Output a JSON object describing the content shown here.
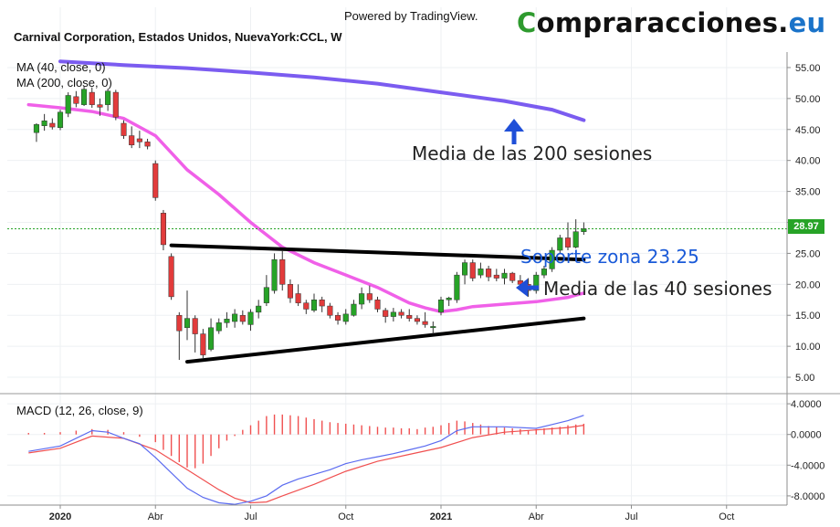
{
  "header": {
    "powered": "Powered by TradingView.",
    "symbol": "Carnival Corporation, Estados Unidos, NuevaYork:CCL, W",
    "brand_part1": "C",
    "brand_part2": "ompraracciones.",
    "brand_part3": "eu"
  },
  "indicators": {
    "ma40": "MA (40, close, 0)",
    "ma200": "MA (200, close, 0)",
    "macd": "MACD (12, 26, close, 9)"
  },
  "annotations": {
    "ma200_label": "Media de las 200 sesiones",
    "support_label": "Soporte zona 23.25",
    "ma40_label": "Media de las 40 sesiones"
  },
  "last_price": "28.97",
  "colors": {
    "up": "#27a327",
    "down": "#e23b3b",
    "ma40": "#f060e8",
    "ma200": "#7b5cf0",
    "macd_line": "#5b6bf0",
    "signal_line": "#f05050",
    "support_text": "#1a5ad8",
    "arrow": "#1f4fd8"
  },
  "chart_data": {
    "type": "candlestick",
    "title": "Carnival Corporation, Estados Unidos, NuevaYork:CCL, W",
    "price_axis": {
      "ylim": [
        2.5,
        57.5
      ],
      "ticks": [
        5,
        10,
        15,
        20,
        25,
        30,
        35,
        40,
        45,
        50,
        55
      ],
      "tick_labels": [
        "5.00",
        "10.00",
        "15.00",
        "20.00",
        "25.00",
        "30.00",
        "35.00",
        "40.00",
        "45.00",
        "50.00",
        "55.00"
      ]
    },
    "time_axis": {
      "start_month_index": -1,
      "month_labels": [
        {
          "label": "2020",
          "month": 0
        },
        {
          "label": "Abr",
          "month": 3
        },
        {
          "label": "Jul",
          "month": 6
        },
        {
          "label": "Oct",
          "month": 9
        },
        {
          "label": "2021",
          "month": 12
        },
        {
          "label": "Abr",
          "month": 15
        },
        {
          "label": "Jul",
          "month": 18
        },
        {
          "label": "Oct",
          "month": 21
        }
      ]
    },
    "candles": [
      {
        "t": -0.75,
        "o": 44.5,
        "h": 46.0,
        "l": 43.0,
        "c": 45.8
      },
      {
        "t": -0.5,
        "o": 45.6,
        "h": 47.5,
        "l": 44.8,
        "c": 46.4
      },
      {
        "t": -0.25,
        "o": 46.0,
        "h": 46.8,
        "l": 45.0,
        "c": 45.4
      },
      {
        "t": 0.0,
        "o": 45.3,
        "h": 48.2,
        "l": 44.9,
        "c": 47.8
      },
      {
        "t": 0.25,
        "o": 47.6,
        "h": 51.0,
        "l": 47.0,
        "c": 50.5
      },
      {
        "t": 0.5,
        "o": 50.3,
        "h": 51.2,
        "l": 48.6,
        "c": 49.2
      },
      {
        "t": 0.75,
        "o": 49.0,
        "h": 52.0,
        "l": 48.8,
        "c": 51.5
      },
      {
        "t": 1.0,
        "o": 51.0,
        "h": 51.8,
        "l": 48.5,
        "c": 49.0
      },
      {
        "t": 1.25,
        "o": 49.0,
        "h": 50.0,
        "l": 47.2,
        "c": 48.6
      },
      {
        "t": 1.5,
        "o": 49.0,
        "h": 51.6,
        "l": 48.0,
        "c": 51.2
      },
      {
        "t": 1.75,
        "o": 51.0,
        "h": 51.4,
        "l": 46.5,
        "c": 47.0
      },
      {
        "t": 2.0,
        "o": 46.0,
        "h": 46.5,
        "l": 43.5,
        "c": 44.0
      },
      {
        "t": 2.25,
        "o": 44.0,
        "h": 45.5,
        "l": 42.0,
        "c": 42.5
      },
      {
        "t": 2.5,
        "o": 43.5,
        "h": 44.8,
        "l": 42.0,
        "c": 43.0
      },
      {
        "t": 2.75,
        "o": 43.0,
        "h": 43.5,
        "l": 41.8,
        "c": 42.3
      },
      {
        "t": 3.0,
        "o": 39.5,
        "h": 40.0,
        "l": 33.5,
        "c": 34.0
      },
      {
        "t": 3.25,
        "o": 31.5,
        "h": 32.0,
        "l": 25.5,
        "c": 26.4
      },
      {
        "t": 3.5,
        "o": 24.5,
        "h": 25.0,
        "l": 17.5,
        "c": 18.0
      },
      {
        "t": 3.75,
        "o": 15.0,
        "h": 15.5,
        "l": 7.8,
        "c": 12.5
      },
      {
        "t": 4.0,
        "o": 13.0,
        "h": 19.0,
        "l": 11.0,
        "c": 14.5
      },
      {
        "t": 4.25,
        "o": 14.5,
        "h": 15.0,
        "l": 9.0,
        "c": 12.0
      },
      {
        "t": 4.5,
        "o": 12.0,
        "h": 12.8,
        "l": 8.0,
        "c": 8.6
      },
      {
        "t": 4.75,
        "o": 9.5,
        "h": 14.5,
        "l": 9.2,
        "c": 13.0
      },
      {
        "t": 5.0,
        "o": 12.5,
        "h": 14.5,
        "l": 12.0,
        "c": 13.8
      },
      {
        "t": 5.25,
        "o": 13.8,
        "h": 15.5,
        "l": 13.0,
        "c": 14.4
      },
      {
        "t": 5.5,
        "o": 14.0,
        "h": 16.0,
        "l": 13.0,
        "c": 15.2
      },
      {
        "t": 5.75,
        "o": 15.0,
        "h": 15.8,
        "l": 13.5,
        "c": 14.0
      },
      {
        "t": 6.0,
        "o": 13.5,
        "h": 16.0,
        "l": 12.5,
        "c": 15.5
      },
      {
        "t": 6.25,
        "o": 15.5,
        "h": 17.5,
        "l": 14.5,
        "c": 16.5
      },
      {
        "t": 6.5,
        "o": 17.0,
        "h": 21.5,
        "l": 16.5,
        "c": 19.5
      },
      {
        "t": 6.75,
        "o": 19.0,
        "h": 25.0,
        "l": 18.5,
        "c": 24.0
      },
      {
        "t": 7.0,
        "o": 24.0,
        "h": 25.5,
        "l": 19.0,
        "c": 20.0
      },
      {
        "t": 7.25,
        "o": 20.0,
        "h": 20.8,
        "l": 17.0,
        "c": 17.8
      },
      {
        "t": 7.5,
        "o": 18.5,
        "h": 20.0,
        "l": 16.5,
        "c": 17.0
      },
      {
        "t": 7.75,
        "o": 17.0,
        "h": 17.5,
        "l": 15.2,
        "c": 16.0
      },
      {
        "t": 8.0,
        "o": 15.8,
        "h": 18.5,
        "l": 15.5,
        "c": 17.5
      },
      {
        "t": 8.25,
        "o": 17.5,
        "h": 18.0,
        "l": 15.5,
        "c": 16.5
      },
      {
        "t": 8.5,
        "o": 16.5,
        "h": 17.0,
        "l": 14.5,
        "c": 15.0
      },
      {
        "t": 8.75,
        "o": 15.0,
        "h": 15.5,
        "l": 13.5,
        "c": 14.2
      },
      {
        "t": 9.0,
        "o": 14.0,
        "h": 16.0,
        "l": 13.5,
        "c": 15.2
      },
      {
        "t": 9.25,
        "o": 15.0,
        "h": 17.5,
        "l": 14.8,
        "c": 16.8
      },
      {
        "t": 9.5,
        "o": 16.8,
        "h": 19.5,
        "l": 16.0,
        "c": 18.5
      },
      {
        "t": 9.75,
        "o": 18.5,
        "h": 19.8,
        "l": 17.0,
        "c": 17.5
      },
      {
        "t": 10.0,
        "o": 17.5,
        "h": 18.0,
        "l": 15.5,
        "c": 16.0
      },
      {
        "t": 10.25,
        "o": 15.8,
        "h": 16.2,
        "l": 13.8,
        "c": 14.8
      },
      {
        "t": 10.5,
        "o": 14.8,
        "h": 16.2,
        "l": 14.0,
        "c": 15.5
      },
      {
        "t": 10.75,
        "o": 15.5,
        "h": 16.0,
        "l": 14.5,
        "c": 15.0
      },
      {
        "t": 11.0,
        "o": 15.0,
        "h": 16.0,
        "l": 14.0,
        "c": 14.5
      },
      {
        "t": 11.25,
        "o": 14.5,
        "h": 15.0,
        "l": 13.5,
        "c": 14.0
      },
      {
        "t": 11.5,
        "o": 14.0,
        "h": 15.5,
        "l": 13.0,
        "c": 13.5
      },
      {
        "t": 11.75,
        "o": 13.0,
        "h": 14.0,
        "l": 12.0,
        "c": 13.2
      },
      {
        "t": 12.0,
        "o": 15.5,
        "h": 18.0,
        "l": 15.0,
        "c": 17.5
      },
      {
        "t": 12.25,
        "o": 17.5,
        "h": 18.0,
        "l": 16.5,
        "c": 17.8
      },
      {
        "t": 12.5,
        "o": 17.5,
        "h": 22.0,
        "l": 17.0,
        "c": 21.5
      },
      {
        "t": 12.75,
        "o": 21.5,
        "h": 24.0,
        "l": 20.0,
        "c": 23.5
      },
      {
        "t": 13.0,
        "o": 23.5,
        "h": 24.0,
        "l": 20.5,
        "c": 21.0
      },
      {
        "t": 13.25,
        "o": 21.5,
        "h": 23.5,
        "l": 21.0,
        "c": 22.5
      },
      {
        "t": 13.5,
        "o": 22.5,
        "h": 23.0,
        "l": 20.5,
        "c": 21.2
      },
      {
        "t": 13.75,
        "o": 21.5,
        "h": 22.5,
        "l": 20.5,
        "c": 21.0
      },
      {
        "t": 14.0,
        "o": 21.0,
        "h": 22.5,
        "l": 20.0,
        "c": 21.8
      },
      {
        "t": 14.25,
        "o": 21.8,
        "h": 22.0,
        "l": 20.2,
        "c": 20.6
      },
      {
        "t": 14.5,
        "o": 20.6,
        "h": 21.5,
        "l": 19.5,
        "c": 20.0
      },
      {
        "t": 14.75,
        "o": 20.0,
        "h": 21.0,
        "l": 18.0,
        "c": 19.0
      },
      {
        "t": 15.0,
        "o": 19.0,
        "h": 22.0,
        "l": 18.5,
        "c": 21.5
      },
      {
        "t": 15.25,
        "o": 21.5,
        "h": 23.0,
        "l": 21.0,
        "c": 22.5
      },
      {
        "t": 15.5,
        "o": 22.5,
        "h": 26.0,
        "l": 22.0,
        "c": 25.5
      },
      {
        "t": 15.75,
        "o": 25.5,
        "h": 28.0,
        "l": 25.0,
        "c": 27.5
      },
      {
        "t": 16.0,
        "o": 27.5,
        "h": 30.0,
        "l": 25.5,
        "c": 26.0
      },
      {
        "t": 16.25,
        "o": 26.0,
        "h": 30.5,
        "l": 25.8,
        "c": 28.5
      },
      {
        "t": 16.5,
        "o": 28.5,
        "h": 30.0,
        "l": 28.0,
        "c": 28.97
      }
    ],
    "ma40": [
      [
        -1.0,
        49.0
      ],
      [
        0.0,
        48.5
      ],
      [
        1.0,
        47.9
      ],
      [
        2.0,
        46.8
      ],
      [
        3.0,
        44.0
      ],
      [
        4.0,
        38.5
      ],
      [
        5.0,
        34.5
      ],
      [
        6.0,
        30.0
      ],
      [
        7.0,
        26.0
      ],
      [
        8.0,
        23.5
      ],
      [
        9.0,
        21.5
      ],
      [
        10.0,
        19.5
      ],
      [
        11.0,
        17.0
      ],
      [
        11.5,
        16.2
      ],
      [
        12.0,
        15.6
      ],
      [
        12.5,
        15.9
      ],
      [
        13.0,
        16.4
      ],
      [
        14.0,
        16.8
      ],
      [
        15.0,
        17.2
      ],
      [
        16.0,
        17.9
      ],
      [
        16.5,
        18.6
      ]
    ],
    "ma200": [
      [
        0.0,
        56.0
      ],
      [
        2.0,
        55.4
      ],
      [
        4.0,
        54.9
      ],
      [
        6.0,
        54.2
      ],
      [
        8.0,
        53.4
      ],
      [
        10.0,
        52.4
      ],
      [
        12.0,
        51.0
      ],
      [
        14.0,
        49.6
      ],
      [
        15.5,
        48.2
      ],
      [
        16.5,
        46.5
      ]
    ],
    "trendlines": [
      {
        "name": "support",
        "from": [
          3.5,
          26.3
        ],
        "to": [
          16.5,
          24.0
        ]
      },
      {
        "name": "rising-base",
        "from": [
          4.0,
          7.5
        ],
        "to": [
          16.5,
          14.5
        ]
      }
    ],
    "last_price_line": 28.97,
    "macd": {
      "ylim": [
        -9.2,
        5.2
      ],
      "ticks": [
        4.0,
        0.0,
        -4.0,
        -8.0
      ],
      "tick_labels": [
        "4.0000",
        "0.0000",
        "-4.0000",
        "-8.0000"
      ],
      "macd_line": [
        [
          -1.0,
          -2.2
        ],
        [
          0.0,
          -1.5
        ],
        [
          1.0,
          0.5
        ],
        [
          1.5,
          0.3
        ],
        [
          2.0,
          -0.5
        ],
        [
          2.5,
          -1.2
        ],
        [
          3.0,
          -3.0
        ],
        [
          3.5,
          -5.0
        ],
        [
          4.0,
          -7.0
        ],
        [
          4.5,
          -8.2
        ],
        [
          5.0,
          -8.9
        ],
        [
          5.5,
          -9.1
        ],
        [
          6.0,
          -8.7
        ],
        [
          6.5,
          -8.0
        ],
        [
          7.0,
          -6.6
        ],
        [
          7.5,
          -5.8
        ],
        [
          8.0,
          -5.2
        ],
        [
          8.5,
          -4.6
        ],
        [
          9.0,
          -3.8
        ],
        [
          9.5,
          -3.3
        ],
        [
          10.0,
          -2.9
        ],
        [
          10.5,
          -2.5
        ],
        [
          11.0,
          -2.0
        ],
        [
          11.5,
          -1.5
        ],
        [
          12.0,
          -0.8
        ],
        [
          12.5,
          0.5
        ],
        [
          13.0,
          1.0
        ],
        [
          14.0,
          1.0
        ],
        [
          15.0,
          0.8
        ],
        [
          15.5,
          1.3
        ],
        [
          16.0,
          1.8
        ],
        [
          16.5,
          2.5
        ]
      ],
      "signal_line": [
        [
          -1.0,
          -2.4
        ],
        [
          0.0,
          -1.8
        ],
        [
          1.0,
          -0.2
        ],
        [
          2.0,
          -0.5
        ],
        [
          3.0,
          -2.0
        ],
        [
          4.0,
          -4.6
        ],
        [
          5.0,
          -7.2
        ],
        [
          5.5,
          -8.3
        ],
        [
          6.0,
          -8.9
        ],
        [
          6.5,
          -8.8
        ],
        [
          7.0,
          -8.0
        ],
        [
          8.0,
          -6.5
        ],
        [
          9.0,
          -4.8
        ],
        [
          10.0,
          -3.5
        ],
        [
          11.0,
          -2.6
        ],
        [
          12.0,
          -1.7
        ],
        [
          13.0,
          -0.4
        ],
        [
          14.0,
          0.3
        ],
        [
          15.0,
          0.6
        ],
        [
          16.0,
          0.9
        ],
        [
          16.5,
          1.2
        ]
      ],
      "histogram": [
        [
          -1.0,
          0.2
        ],
        [
          -0.5,
          0.2
        ],
        [
          0.0,
          0.3
        ],
        [
          0.5,
          0.5
        ],
        [
          1.0,
          0.7
        ],
        [
          1.5,
          0.6
        ],
        [
          2.0,
          0.3
        ],
        [
          2.5,
          -0.3
        ],
        [
          3.0,
          -1.0
        ],
        [
          3.25,
          -2.0
        ],
        [
          3.5,
          -2.8
        ],
        [
          3.75,
          -3.6
        ],
        [
          4.0,
          -4.3
        ],
        [
          4.25,
          -4.4
        ],
        [
          4.5,
          -3.8
        ],
        [
          4.75,
          -2.8
        ],
        [
          5.0,
          -1.8
        ],
        [
          5.25,
          -0.8
        ],
        [
          5.5,
          -0.2
        ],
        [
          5.75,
          0.6
        ],
        [
          6.0,
          1.2
        ],
        [
          6.25,
          1.8
        ],
        [
          6.5,
          2.4
        ],
        [
          6.75,
          2.6
        ],
        [
          7.0,
          2.6
        ],
        [
          7.25,
          2.5
        ],
        [
          7.5,
          2.4
        ],
        [
          7.75,
          2.2
        ],
        [
          8.0,
          2.0
        ],
        [
          8.25,
          1.8
        ],
        [
          8.5,
          1.6
        ],
        [
          8.75,
          1.5
        ],
        [
          9.0,
          1.4
        ],
        [
          9.25,
          1.3
        ],
        [
          9.5,
          1.2
        ],
        [
          9.75,
          1.1
        ],
        [
          10.0,
          1.0
        ],
        [
          10.25,
          0.9
        ],
        [
          10.5,
          0.9
        ],
        [
          10.75,
          0.8
        ],
        [
          11.0,
          0.8
        ],
        [
          11.25,
          0.7
        ],
        [
          11.5,
          0.9
        ],
        [
          11.75,
          1.0
        ],
        [
          12.0,
          1.2
        ],
        [
          12.25,
          1.5
        ],
        [
          12.5,
          1.8
        ],
        [
          12.75,
          1.7
        ],
        [
          13.0,
          1.5
        ],
        [
          13.25,
          1.3
        ],
        [
          13.5,
          1.1
        ],
        [
          13.75,
          1.0
        ],
        [
          14.0,
          0.9
        ],
        [
          14.25,
          0.8
        ],
        [
          14.5,
          0.7
        ],
        [
          14.75,
          0.5
        ],
        [
          15.0,
          0.7
        ],
        [
          15.25,
          0.8
        ],
        [
          15.5,
          0.9
        ],
        [
          15.75,
          1.0
        ],
        [
          16.0,
          1.2
        ],
        [
          16.25,
          1.3
        ],
        [
          16.5,
          1.4
        ]
      ]
    }
  }
}
